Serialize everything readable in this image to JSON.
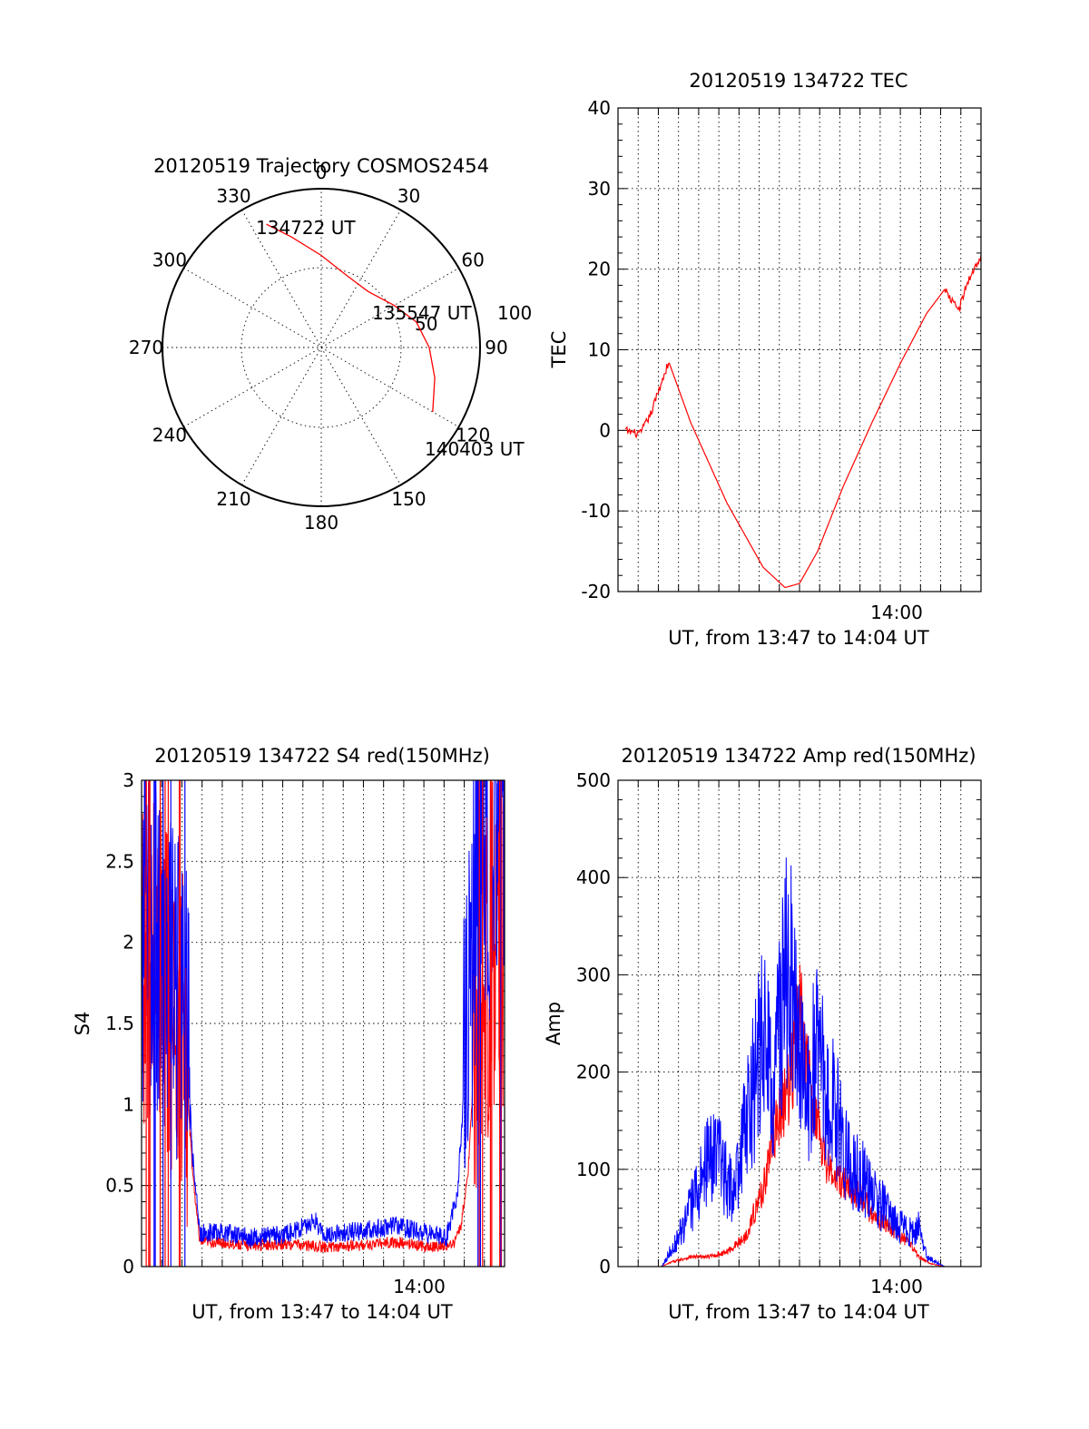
{
  "figure": {
    "colors": {
      "red": "#ff0000",
      "blue": "#0000ff",
      "black": "#000000",
      "background": "#ffffff"
    }
  },
  "chart_data": [
    {
      "type": "polar",
      "id": "trajectory",
      "title": "20120519 Trajectory COSMOS2454",
      "azimuth_labels": [
        "0",
        "30",
        "60",
        "90",
        "120",
        "150",
        "180",
        "210",
        "240",
        "270",
        "300",
        "330"
      ],
      "radius_labels": [
        "50",
        "100"
      ],
      "grid": true,
      "trajectory_points": [
        {
          "azimuth": 336,
          "elevation_offset": 85
        },
        {
          "azimuth": 345,
          "elevation_offset": 72
        },
        {
          "azimuth": 0,
          "elevation_offset": 58
        },
        {
          "azimuth": 20,
          "elevation_offset": 48
        },
        {
          "azimuth": 40,
          "elevation_offset": 46
        },
        {
          "azimuth": 60,
          "elevation_offset": 53
        },
        {
          "azimuth": 75,
          "elevation_offset": 62
        },
        {
          "azimuth": 90,
          "elevation_offset": 68
        },
        {
          "azimuth": 105,
          "elevation_offset": 74
        },
        {
          "azimuth": 120,
          "elevation_offset": 81
        }
      ],
      "annotations": [
        "134722 UT",
        "135547 UT",
        "140403 UT"
      ],
      "color": "#ff0000"
    },
    {
      "type": "line",
      "id": "tec",
      "title": "20120519 134722 TEC",
      "ylabel": "TEC",
      "xlabel": "UT, from 13:47 to 14:04 UT",
      "x_tick_label": "14:00",
      "y_ticks": [
        "40",
        "30",
        "20",
        "10",
        "0",
        "-10",
        "-20"
      ],
      "ylim": [
        -20,
        40
      ],
      "xlim": [
        0,
        1
      ],
      "grid": true,
      "series": [
        {
          "color": "#ff0000",
          "x": [
            0.02,
            0.06,
            0.09,
            0.12,
            0.14,
            0.2,
            0.3,
            0.4,
            0.46,
            0.5,
            0.55,
            0.62,
            0.7,
            0.78,
            0.85,
            0.9,
            0.92,
            0.94,
            0.96,
            0.98,
            1.0
          ],
          "y": [
            0.0,
            -0.5,
            2.0,
            6.0,
            8.5,
            1.0,
            -9.0,
            -17.0,
            -19.5,
            -19.0,
            -15.0,
            -7.0,
            1.0,
            8.5,
            14.5,
            17.5,
            16.0,
            15.0,
            18.0,
            20.0,
            21.5
          ]
        }
      ]
    },
    {
      "type": "line",
      "id": "s4",
      "title": "20120519 134722 S4 red(150MHz)",
      "ylabel": "S4",
      "xlabel": "UT, from 13:47 to 14:04 UT",
      "x_tick_label": "14:00",
      "y_ticks": [
        "3",
        "2.5",
        "2",
        "1.5",
        "1",
        "0.5",
        "0"
      ],
      "ylim": [
        0,
        3
      ],
      "xlim": [
        0,
        1
      ],
      "grid": true,
      "series": [
        {
          "color": "#ff0000",
          "x": [
            0.0,
            0.06,
            0.12,
            0.14,
            0.16,
            0.2,
            0.3,
            0.4,
            0.5,
            0.6,
            0.7,
            0.8,
            0.86,
            0.88,
            0.9,
            0.93,
            1.0
          ],
          "y": [
            2.0,
            1.8,
            1.3,
            0.6,
            0.15,
            0.15,
            0.13,
            0.14,
            0.12,
            0.13,
            0.15,
            0.12,
            0.14,
            0.25,
            0.6,
            1.8,
            2.0
          ]
        },
        {
          "color": "#0000ff",
          "x": [
            0.0,
            0.06,
            0.12,
            0.14,
            0.16,
            0.2,
            0.3,
            0.4,
            0.48,
            0.5,
            0.6,
            0.7,
            0.8,
            0.84,
            0.87,
            0.9,
            0.93,
            1.0
          ],
          "y": [
            2.1,
            1.9,
            1.6,
            0.7,
            0.2,
            0.22,
            0.18,
            0.2,
            0.28,
            0.2,
            0.22,
            0.25,
            0.2,
            0.18,
            0.45,
            1.5,
            2.5,
            2.6
          ]
        }
      ]
    },
    {
      "type": "line",
      "id": "amp",
      "title": "20120519 134722 Amp red(150MHz)",
      "ylabel": "Amp",
      "xlabel": "UT, from 13:47 to 14:04 UT",
      "x_tick_label": "14:00",
      "y_ticks": [
        "500",
        "400",
        "300",
        "200",
        "100",
        "0"
      ],
      "ylim": [
        0,
        500
      ],
      "xlim": [
        0,
        1
      ],
      "grid": true,
      "series": [
        {
          "color": "#ff0000",
          "x": [
            0.0,
            0.12,
            0.15,
            0.2,
            0.25,
            0.3,
            0.35,
            0.4,
            0.43,
            0.45,
            0.48,
            0.5,
            0.52,
            0.55,
            0.58,
            0.6,
            0.65,
            0.7,
            0.75,
            0.8,
            0.83,
            0.86,
            0.9,
            1.0
          ],
          "y": [
            0,
            0,
            5,
            10,
            10,
            15,
            30,
            80,
            140,
            160,
            200,
            270,
            200,
            150,
            100,
            90,
            80,
            55,
            40,
            25,
            10,
            3,
            0,
            0
          ]
        },
        {
          "color": "#0000ff",
          "x": [
            0.0,
            0.12,
            0.15,
            0.18,
            0.22,
            0.26,
            0.3,
            0.32,
            0.35,
            0.38,
            0.4,
            0.43,
            0.45,
            0.47,
            0.5,
            0.52,
            0.55,
            0.58,
            0.6,
            0.63,
            0.66,
            0.7,
            0.75,
            0.8,
            0.83,
            0.85,
            0.9,
            1.0
          ],
          "y": [
            0,
            0,
            20,
            40,
            80,
            120,
            90,
            70,
            140,
            200,
            230,
            190,
            260,
            310,
            200,
            180,
            220,
            170,
            160,
            110,
            100,
            80,
            50,
            35,
            40,
            10,
            0,
            0
          ]
        }
      ]
    }
  ]
}
